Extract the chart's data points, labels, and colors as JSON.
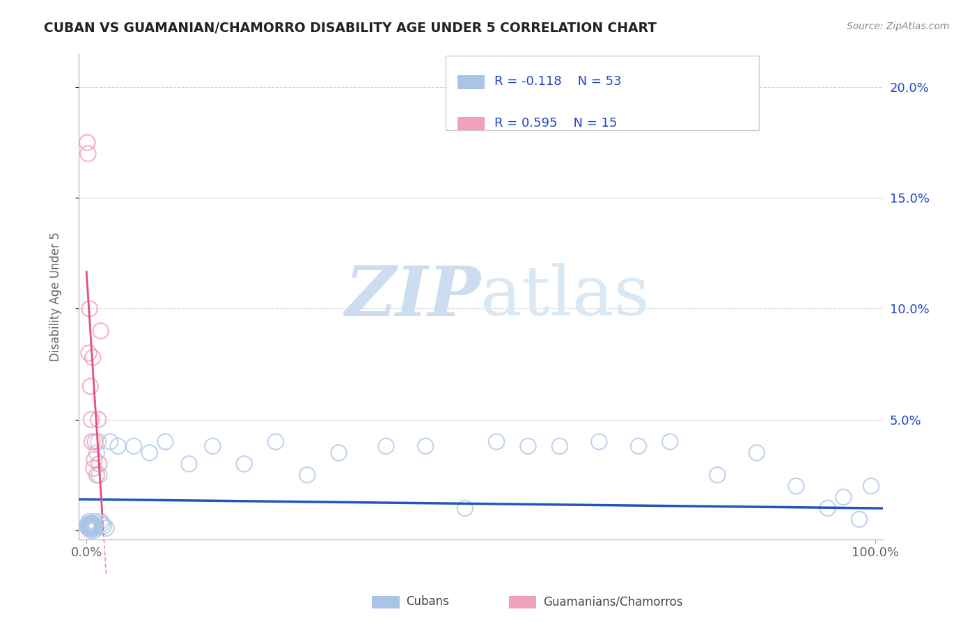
{
  "title": "CUBAN VS GUAMANIAN/CHAMORRO DISABILITY AGE UNDER 5 CORRELATION CHART",
  "source": "Source: ZipAtlas.com",
  "ylabel": "Disability Age Under 5",
  "xlim": [
    -0.01,
    1.01
  ],
  "ylim": [
    -0.004,
    0.215
  ],
  "yticks": [
    0.0,
    0.05,
    0.1,
    0.15,
    0.2
  ],
  "yticklabels": [
    "",
    "5.0%",
    "10.0%",
    "15.0%",
    "20.0%"
  ],
  "cubans_R": -0.118,
  "cubans_N": 53,
  "guamanians_R": 0.595,
  "guamanians_N": 15,
  "background_color": "#ffffff",
  "grid_color": "#cccccc",
  "title_color": "#222222",
  "source_color": "#888888",
  "cubans_color": "#aac4e8",
  "cubans_line_color": "#2255bb",
  "guamanians_color": "#f0a0b8",
  "guamanians_line_color": "#e0507a",
  "watermark_color": "#ccddf0",
  "legend_R_color": "#2244cc",
  "cubans_x": [
    0.001,
    0.002,
    0.002,
    0.003,
    0.003,
    0.004,
    0.004,
    0.005,
    0.005,
    0.006,
    0.006,
    0.007,
    0.008,
    0.008,
    0.009,
    0.01,
    0.01,
    0.011,
    0.012,
    0.013,
    0.015,
    0.016,
    0.018,
    0.02,
    0.022,
    0.025,
    0.03,
    0.04,
    0.06,
    0.08,
    0.1,
    0.13,
    0.16,
    0.2,
    0.24,
    0.28,
    0.32,
    0.38,
    0.43,
    0.48,
    0.52,
    0.56,
    0.6,
    0.65,
    0.7,
    0.74,
    0.8,
    0.85,
    0.9,
    0.94,
    0.96,
    0.98,
    0.995
  ],
  "cubans_y": [
    0.002,
    0.001,
    0.003,
    0.002,
    0.004,
    0.001,
    0.003,
    0.002,
    0.0,
    0.001,
    0.003,
    0.002,
    0.001,
    0.003,
    0.002,
    0.0,
    0.004,
    0.001,
    0.002,
    0.035,
    0.04,
    0.025,
    0.004,
    0.003,
    0.002,
    0.001,
    0.04,
    0.038,
    0.038,
    0.035,
    0.04,
    0.03,
    0.038,
    0.03,
    0.04,
    0.025,
    0.035,
    0.038,
    0.038,
    0.01,
    0.04,
    0.038,
    0.038,
    0.04,
    0.038,
    0.04,
    0.025,
    0.035,
    0.02,
    0.01,
    0.015,
    0.005,
    0.02
  ],
  "guamanians_x": [
    0.001,
    0.002,
    0.003,
    0.004,
    0.005,
    0.006,
    0.007,
    0.008,
    0.009,
    0.01,
    0.011,
    0.013,
    0.015,
    0.016,
    0.018
  ],
  "guamanians_y": [
    0.175,
    0.17,
    0.08,
    0.1,
    0.065,
    0.05,
    0.04,
    0.078,
    0.028,
    0.032,
    0.04,
    0.025,
    0.05,
    0.03,
    0.09
  ]
}
